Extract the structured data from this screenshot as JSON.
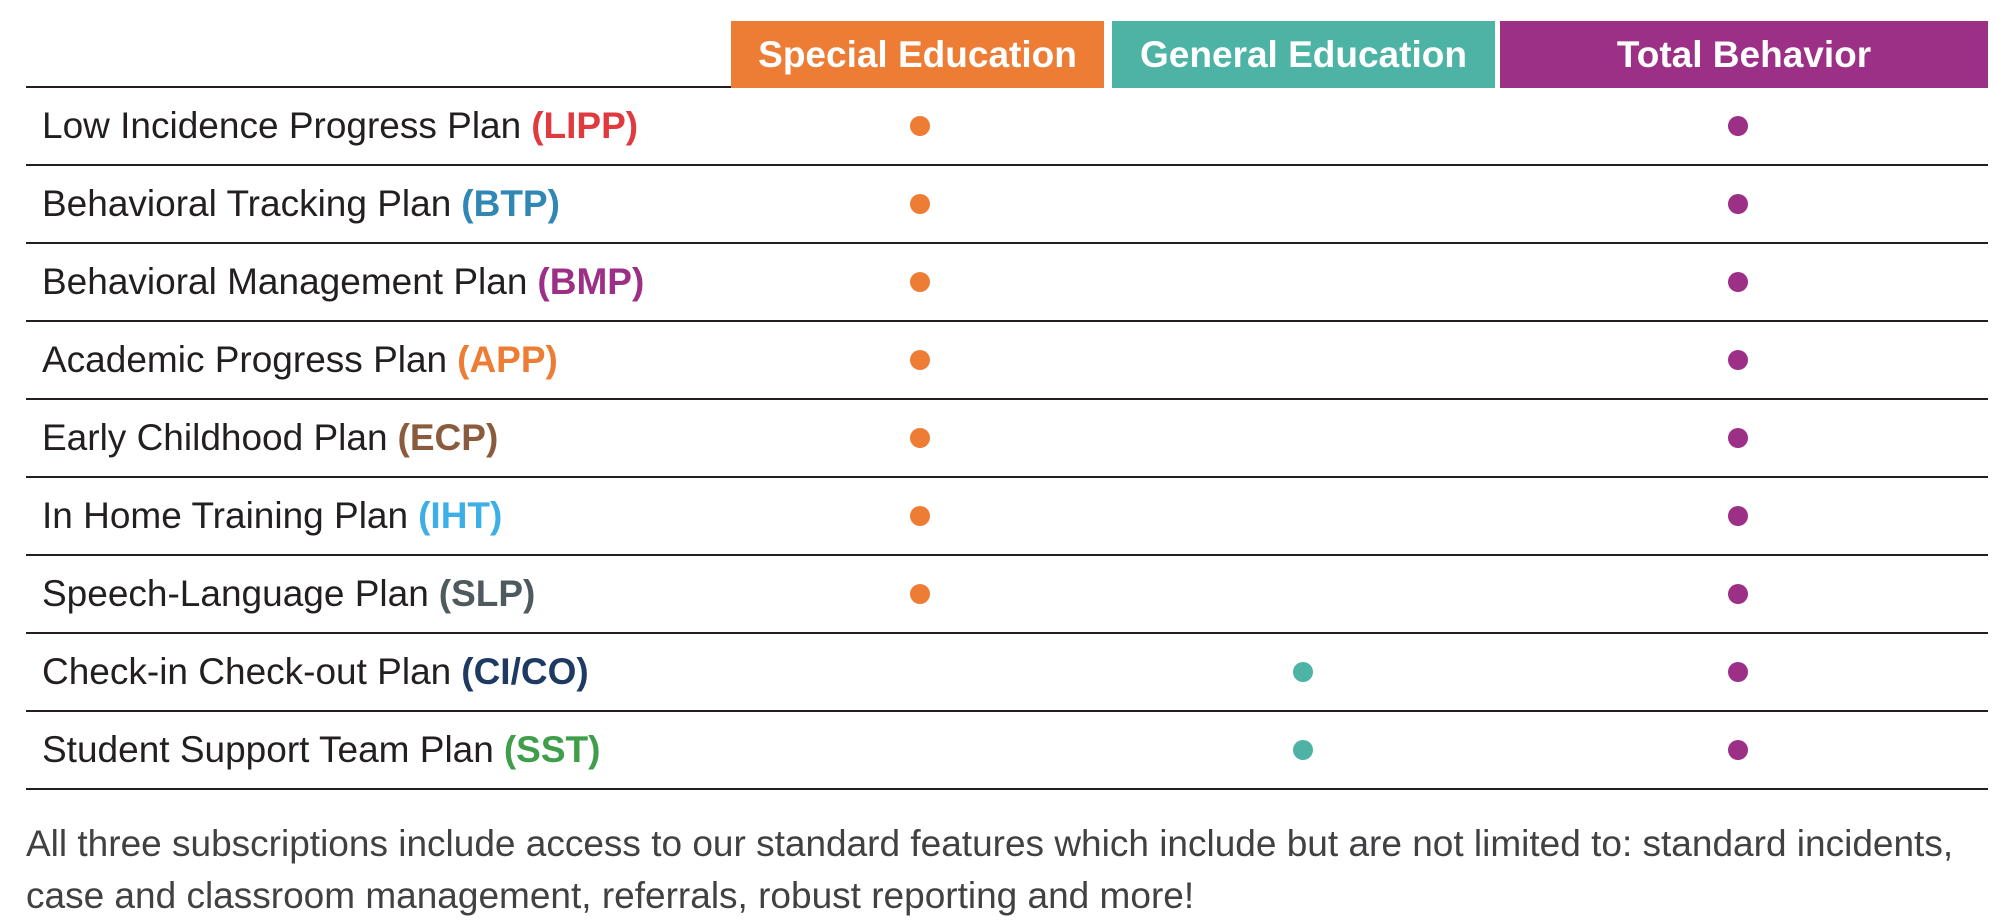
{
  "columns": {
    "special": {
      "label": "Special Education",
      "color": "#ed7c35"
    },
    "general": {
      "label": "General Education",
      "color": "#4cb3a5"
    },
    "total": {
      "label": "Total Behavior",
      "color": "#9c2f86"
    }
  },
  "rows": [
    {
      "name": "Low Incidence Progress Plan",
      "abbr": "(LIPP)",
      "abbr_color": "#e0393e",
      "special": true,
      "general": false,
      "total": true
    },
    {
      "name": "Behavioral Tracking Plan",
      "abbr": "(BTP)",
      "abbr_color": "#3187b4",
      "special": true,
      "general": false,
      "total": true
    },
    {
      "name": "Behavioral Management Plan",
      "abbr": "(BMP)",
      "abbr_color": "#9c2f86",
      "special": true,
      "general": false,
      "total": true
    },
    {
      "name": "Academic Progress Plan",
      "abbr": "(APP)",
      "abbr_color": "#ed7c35",
      "special": true,
      "general": false,
      "total": true
    },
    {
      "name": "Early Childhood Plan",
      "abbr": "(ECP)",
      "abbr_color": "#8a5b3d",
      "special": true,
      "general": false,
      "total": true
    },
    {
      "name": "In Home Training Plan",
      "abbr": "(IHT)",
      "abbr_color": "#3cb0e6",
      "special": true,
      "general": false,
      "total": true
    },
    {
      "name": "Speech-Language Plan",
      "abbr": "(SLP)",
      "abbr_color": "#4f5a5f",
      "special": true,
      "general": false,
      "total": true
    },
    {
      "name": "Check-in Check-out Plan",
      "abbr": "(CI/CO)",
      "abbr_color": "#1e3a63",
      "special": false,
      "general": true,
      "total": true
    },
    {
      "name": "Student Support Team Plan",
      "abbr": "(SST)",
      "abbr_color": "#3e9e4a",
      "special": false,
      "general": true,
      "total": true
    }
  ],
  "footer": {
    "text": "All three subscriptions include access to our standard features which include but are not limited to: standard incidents, case and classroom management, referrals, robust reporting and more!"
  }
}
